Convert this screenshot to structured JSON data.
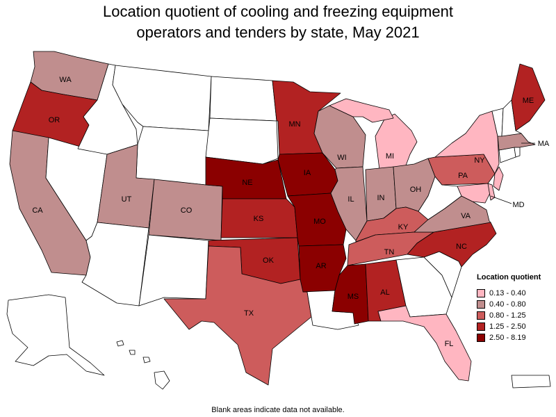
{
  "title": "Location quotient of cooling and freezing equipment\noperators and tenders by state, May 2021",
  "footnote": "Blank areas indicate data not available.",
  "legend": {
    "title": "Location quotient",
    "items": [
      {
        "label": "0.13 - 0.40",
        "color": "#ffb6c1"
      },
      {
        "label": "0.40 - 0.80",
        "color": "#c08e8e"
      },
      {
        "label": "0.80 - 1.25",
        "color": "#cd5c5c"
      },
      {
        "label": "1.25 - 2.50",
        "color": "#b22222"
      },
      {
        "label": "2.50 - 8.19",
        "color": "#8b0000"
      }
    ]
  },
  "states": [
    {
      "code": "WA",
      "label": "WA",
      "class": 1
    },
    {
      "code": "OR",
      "label": "OR",
      "class": 3
    },
    {
      "code": "CA",
      "label": "CA",
      "class": 1
    },
    {
      "code": "NV",
      "label": "",
      "class": null
    },
    {
      "code": "ID",
      "label": "",
      "class": null
    },
    {
      "code": "MT",
      "label": "",
      "class": null
    },
    {
      "code": "WY",
      "label": "",
      "class": null
    },
    {
      "code": "UT",
      "label": "UT",
      "class": 1
    },
    {
      "code": "CO",
      "label": "CO",
      "class": 1
    },
    {
      "code": "AZ",
      "label": "",
      "class": null
    },
    {
      "code": "NM",
      "label": "",
      "class": null
    },
    {
      "code": "ND",
      "label": "",
      "class": null
    },
    {
      "code": "SD",
      "label": "",
      "class": null
    },
    {
      "code": "NE",
      "label": "NE",
      "class": 4
    },
    {
      "code": "KS",
      "label": "KS",
      "class": 3
    },
    {
      "code": "OK",
      "label": "OK",
      "class": 3
    },
    {
      "code": "TX",
      "label": "TX",
      "class": 2
    },
    {
      "code": "MN",
      "label": "MN",
      "class": 3
    },
    {
      "code": "IA",
      "label": "IA",
      "class": 4
    },
    {
      "code": "MO",
      "label": "MO",
      "class": 4
    },
    {
      "code": "AR",
      "label": "AR",
      "class": 4
    },
    {
      "code": "LA",
      "label": "",
      "class": null
    },
    {
      "code": "WI",
      "label": "WI",
      "class": 1
    },
    {
      "code": "IL",
      "label": "IL",
      "class": 1
    },
    {
      "code": "MI",
      "label": "MI",
      "class": 0
    },
    {
      "code": "IN",
      "label": "IN",
      "class": 1
    },
    {
      "code": "OH",
      "label": "OH",
      "class": 1
    },
    {
      "code": "KY",
      "label": "KY",
      "class": 2
    },
    {
      "code": "TN",
      "label": "TN",
      "class": 2
    },
    {
      "code": "MS",
      "label": "MS",
      "class": 4
    },
    {
      "code": "AL",
      "label": "AL",
      "class": 3
    },
    {
      "code": "GA",
      "label": "",
      "class": null
    },
    {
      "code": "FL",
      "label": "FL",
      "class": 0
    },
    {
      "code": "SC",
      "label": "",
      "class": null
    },
    {
      "code": "NC",
      "label": "NC",
      "class": 3
    },
    {
      "code": "VA",
      "label": "VA",
      "class": 1
    },
    {
      "code": "WV",
      "label": "",
      "class": null
    },
    {
      "code": "PA",
      "label": "PA",
      "class": 2
    },
    {
      "code": "NY",
      "label": "NY",
      "class": 0
    },
    {
      "code": "MD",
      "label": "MD",
      "class": 0
    },
    {
      "code": "DE",
      "label": "",
      "class": 0
    },
    {
      "code": "NJ",
      "label": "",
      "class": 0
    },
    {
      "code": "CT",
      "label": "",
      "class": null
    },
    {
      "code": "RI",
      "label": "",
      "class": null
    },
    {
      "code": "MA",
      "label": "MA",
      "class": 1
    },
    {
      "code": "VT",
      "label": "",
      "class": null
    },
    {
      "code": "NH",
      "label": "",
      "class": null
    },
    {
      "code": "ME",
      "label": "ME",
      "class": 3
    },
    {
      "code": "AK",
      "label": "",
      "class": null
    },
    {
      "code": "HI",
      "label": "",
      "class": null
    },
    {
      "code": "PR",
      "label": "",
      "class": null
    }
  ]
}
